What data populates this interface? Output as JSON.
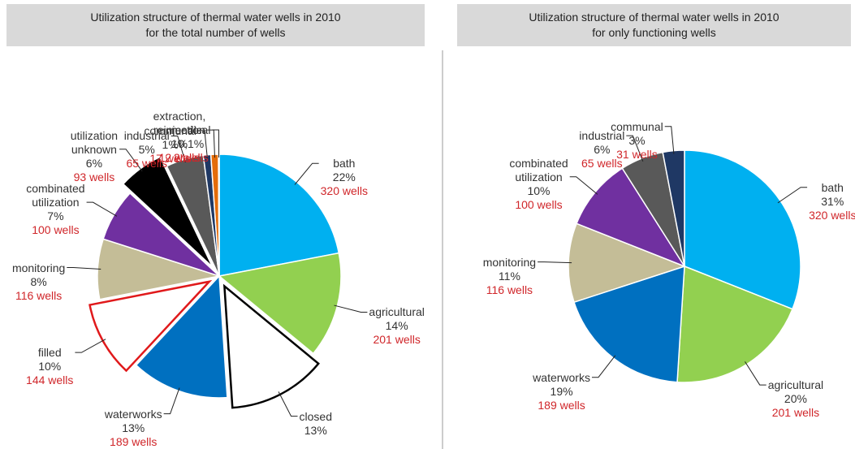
{
  "chart_data": [
    {
      "type": "pie",
      "title": "Utilization structure of thermal water wells in 2010\nfor the total number of wells",
      "categories": [
        "bath",
        "agricultural",
        "closed",
        "waterworks",
        "filled",
        "monitoring",
        "combinated\nutilization",
        "utilization\nunknown",
        "industrial",
        "communal",
        "extraction,\nreinjection",
        "medical"
      ],
      "values": [
        22,
        14,
        13,
        13,
        10,
        8,
        7,
        6,
        5,
        1,
        1,
        0.1
      ],
      "value_labels": [
        "22%",
        "14%",
        "13%",
        "13%",
        "10%",
        "8%",
        "7%",
        "6%",
        "5%",
        "1%",
        "1%",
        "0,1%"
      ],
      "count_labels": [
        "320 wells",
        "201 wells",
        null,
        "189 wells",
        "144 wells",
        "116 wells",
        "100 wells",
        "93 wells",
        "65 wells",
        "17 wells",
        "12 wells",
        "2 wells"
      ],
      "colors": [
        "#00b0f0",
        "#92d050",
        "#ffffff",
        "#0070c0",
        "#ffffff",
        "#c4bd97",
        "#7030a0",
        "#000000",
        "#595959",
        "#1f3864",
        "#e46c0a",
        "#c00000"
      ],
      "edgecolors": [
        "#ffffff",
        "#ffffff",
        "#000000",
        "#ffffff",
        "#e0191b",
        "#ffffff",
        "#ffffff",
        "#ffffff",
        "#ffffff",
        "#ffffff",
        "#ffffff",
        "#ffffff"
      ],
      "explode": [
        false,
        false,
        true,
        false,
        true,
        false,
        false,
        true,
        false,
        false,
        false,
        false
      ]
    },
    {
      "type": "pie",
      "title": "Utilization structure of thermal water wells in 2010\nfor only functioning wells",
      "categories": [
        "bath",
        "agricultural",
        "waterworks",
        "monitoring",
        "combinated\nutilization",
        "industrial",
        "communal"
      ],
      "values": [
        31,
        20,
        19,
        11,
        10,
        6,
        3
      ],
      "value_labels": [
        "31%",
        "20%",
        "19%",
        "11%",
        "10%",
        "6%",
        "3%"
      ],
      "count_labels": [
        "320 wells",
        "201 wells",
        "189 wells",
        "116 wells",
        "100 wells",
        "65 wells",
        "31 wells"
      ],
      "colors": [
        "#00b0f0",
        "#92d050",
        "#0070c0",
        "#c4bd97",
        "#7030a0",
        "#595959",
        "#1f3864"
      ],
      "edgecolors": [
        "#ffffff",
        "#ffffff",
        "#ffffff",
        "#ffffff",
        "#ffffff",
        "#ffffff",
        "#ffffff"
      ],
      "explode": [
        false,
        false,
        false,
        false,
        false,
        false,
        false
      ]
    }
  ]
}
